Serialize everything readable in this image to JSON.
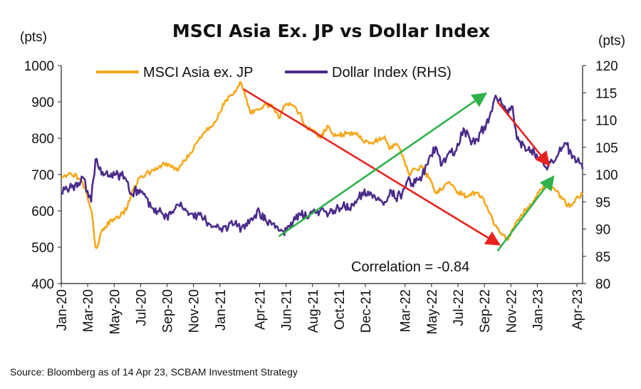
{
  "chart_data": {
    "type": "line",
    "title": "MSCI Asia Ex. JP vs Dollar Index",
    "left_unit": "(pts)",
    "right_unit": "(pts)",
    "source": "Source: Bloomberg as of 14 Apr 23, SCBAM Investment Strategy",
    "annotation": "Correlation = -0.84",
    "x_start": "2020-01",
    "x_end": "2023-04-14",
    "x_tick_labels": [
      "Jan-20",
      "Mar-20",
      "May-20",
      "Jul-20",
      "Sep-20",
      "Nov-20",
      "Jan-21",
      "Apr-21",
      "Jun-21",
      "Aug-21",
      "Oct-21",
      "Dec-21",
      "Mar-22",
      "May-22",
      "Jul-22",
      "Sep-22",
      "Nov-22",
      "Jan-23",
      "Apr-23"
    ],
    "y_left": {
      "min": 400,
      "max": 1000,
      "ticks": [
        400,
        500,
        600,
        700,
        800,
        900,
        1000
      ]
    },
    "y_right": {
      "min": 80,
      "max": 120,
      "ticks": [
        80,
        85,
        90,
        95,
        100,
        105,
        110,
        115,
        120
      ]
    },
    "grid": false,
    "legend_position": "top",
    "series": [
      {
        "name": "MSCI Asia ex. JP",
        "axis": "left",
        "color": "#F5A81C",
        "points": [
          [
            "2020-01-01",
            690
          ],
          [
            "2020-01-20",
            705
          ],
          [
            "2020-02-10",
            690
          ],
          [
            "2020-02-25",
            665
          ],
          [
            "2020-03-10",
            600
          ],
          [
            "2020-03-19",
            500
          ],
          [
            "2020-03-23",
            500
          ],
          [
            "2020-04-05",
            550
          ],
          [
            "2020-04-25",
            575
          ],
          [
            "2020-05-15",
            585
          ],
          [
            "2020-06-01",
            610
          ],
          [
            "2020-06-15",
            660
          ],
          [
            "2020-07-01",
            695
          ],
          [
            "2020-07-20",
            705
          ],
          [
            "2020-08-10",
            715
          ],
          [
            "2020-08-25",
            730
          ],
          [
            "2020-09-10",
            720
          ],
          [
            "2020-09-25",
            710
          ],
          [
            "2020-10-10",
            740
          ],
          [
            "2020-10-25",
            760
          ],
          [
            "2020-11-10",
            790
          ],
          [
            "2020-11-25",
            815
          ],
          [
            "2020-12-10",
            830
          ],
          [
            "2020-12-31",
            870
          ],
          [
            "2021-01-15",
            905
          ],
          [
            "2021-02-01",
            920
          ],
          [
            "2021-02-17",
            955
          ],
          [
            "2021-03-01",
            910
          ],
          [
            "2021-03-10",
            870
          ],
          [
            "2021-03-25",
            880
          ],
          [
            "2021-04-15",
            895
          ],
          [
            "2021-05-01",
            885
          ],
          [
            "2021-05-15",
            855
          ],
          [
            "2021-06-01",
            895
          ],
          [
            "2021-06-15",
            890
          ],
          [
            "2021-07-01",
            870
          ],
          [
            "2021-07-20",
            825
          ],
          [
            "2021-08-05",
            820
          ],
          [
            "2021-08-20",
            800
          ],
          [
            "2021-09-05",
            835
          ],
          [
            "2021-09-20",
            805
          ],
          [
            "2021-10-10",
            810
          ],
          [
            "2021-10-25",
            815
          ],
          [
            "2021-11-10",
            810
          ],
          [
            "2021-11-25",
            795
          ],
          [
            "2021-12-10",
            785
          ],
          [
            "2021-12-31",
            795
          ],
          [
            "2022-01-15",
            805
          ],
          [
            "2022-01-28",
            770
          ],
          [
            "2022-02-10",
            785
          ],
          [
            "2022-02-20",
            770
          ],
          [
            "2022-03-10",
            700
          ],
          [
            "2022-03-25",
            715
          ],
          [
            "2022-04-10",
            720
          ],
          [
            "2022-04-25",
            690
          ],
          [
            "2022-05-10",
            650
          ],
          [
            "2022-05-25",
            660
          ],
          [
            "2022-06-10",
            680
          ],
          [
            "2022-06-25",
            660
          ],
          [
            "2022-07-10",
            645
          ],
          [
            "2022-07-25",
            640
          ],
          [
            "2022-08-10",
            650
          ],
          [
            "2022-08-25",
            640
          ],
          [
            "2022-09-10",
            600
          ],
          [
            "2022-09-25",
            560
          ],
          [
            "2022-10-10",
            535
          ],
          [
            "2022-10-25",
            520
          ],
          [
            "2022-11-10",
            560
          ],
          [
            "2022-11-25",
            590
          ],
          [
            "2022-12-10",
            610
          ],
          [
            "2022-12-25",
            630
          ],
          [
            "2023-01-10",
            660
          ],
          [
            "2023-01-27",
            675
          ],
          [
            "2023-02-10",
            660
          ],
          [
            "2023-02-25",
            640
          ],
          [
            "2023-03-10",
            615
          ],
          [
            "2023-03-20",
            615
          ],
          [
            "2023-04-01",
            640
          ],
          [
            "2023-04-14",
            645
          ]
        ]
      },
      {
        "name": "Dollar Index (RHS)",
        "axis": "right",
        "color": "#4B2C8A",
        "points": [
          [
            "2020-01-01",
            96.5
          ],
          [
            "2020-01-20",
            97.5
          ],
          [
            "2020-02-10",
            98.5
          ],
          [
            "2020-02-20",
            99.5
          ],
          [
            "2020-03-09",
            95.0
          ],
          [
            "2020-03-19",
            102.8
          ],
          [
            "2020-03-25",
            101.5
          ],
          [
            "2020-04-10",
            100.0
          ],
          [
            "2020-04-25",
            100.2
          ],
          [
            "2020-05-10",
            100.0
          ],
          [
            "2020-05-25",
            99.5
          ],
          [
            "2020-06-10",
            96.5
          ],
          [
            "2020-06-25",
            97.2
          ],
          [
            "2020-07-10",
            96.5
          ],
          [
            "2020-07-25",
            94.0
          ],
          [
            "2020-08-10",
            93.3
          ],
          [
            "2020-08-31",
            92.5
          ],
          [
            "2020-09-15",
            93.0
          ],
          [
            "2020-09-25",
            94.5
          ],
          [
            "2020-10-10",
            93.5
          ],
          [
            "2020-10-25",
            92.8
          ],
          [
            "2020-11-10",
            92.6
          ],
          [
            "2020-11-25",
            91.8
          ],
          [
            "2020-12-10",
            90.8
          ],
          [
            "2020-12-31",
            89.9
          ],
          [
            "2021-01-06",
            89.5
          ],
          [
            "2021-01-20",
            90.3
          ],
          [
            "2021-02-05",
            91.0
          ],
          [
            "2021-02-20",
            90.2
          ],
          [
            "2021-03-10",
            91.8
          ],
          [
            "2021-03-31",
            93.2
          ],
          [
            "2021-04-15",
            91.6
          ],
          [
            "2021-05-01",
            91.0
          ],
          [
            "2021-05-20",
            89.9
          ],
          [
            "2021-05-25",
            89.6
          ],
          [
            "2021-06-10",
            90.3
          ],
          [
            "2021-06-20",
            92.2
          ],
          [
            "2021-07-05",
            92.5
          ],
          [
            "2021-07-25",
            92.7
          ],
          [
            "2021-08-10",
            93.0
          ],
          [
            "2021-08-20",
            93.5
          ],
          [
            "2021-09-05",
            92.3
          ],
          [
            "2021-09-25",
            93.6
          ],
          [
            "2021-10-10",
            94.2
          ],
          [
            "2021-10-25",
            93.8
          ],
          [
            "2021-11-10",
            94.8
          ],
          [
            "2021-11-24",
            96.7
          ],
          [
            "2021-12-10",
            96.2
          ],
          [
            "2021-12-31",
            95.8
          ],
          [
            "2022-01-15",
            95.0
          ],
          [
            "2022-01-28",
            97.2
          ],
          [
            "2022-02-10",
            95.6
          ],
          [
            "2022-02-25",
            96.6
          ],
          [
            "2022-03-07",
            99.0
          ],
          [
            "2022-03-25",
            98.5
          ],
          [
            "2022-04-10",
            99.8
          ],
          [
            "2022-04-28",
            103.5
          ],
          [
            "2022-05-13",
            104.8
          ],
          [
            "2022-05-25",
            101.8
          ],
          [
            "2022-06-10",
            103.9
          ],
          [
            "2022-06-25",
            104.2
          ],
          [
            "2022-07-14",
            108.5
          ],
          [
            "2022-08-01",
            105.5
          ],
          [
            "2022-08-15",
            106.5
          ],
          [
            "2022-08-31",
            108.8
          ],
          [
            "2022-09-10",
            109.5
          ],
          [
            "2022-09-27",
            114.5
          ],
          [
            "2022-10-10",
            113.0
          ],
          [
            "2022-10-25",
            111.0
          ],
          [
            "2022-11-05",
            112.5
          ],
          [
            "2022-11-15",
            106.5
          ],
          [
            "2022-11-30",
            105.5
          ],
          [
            "2022-12-10",
            104.5
          ],
          [
            "2022-12-25",
            104.0
          ],
          [
            "2023-01-10",
            103.0
          ],
          [
            "2023-01-26",
            101.5
          ],
          [
            "2023-02-05",
            102.5
          ],
          [
            "2023-02-20",
            104.0
          ],
          [
            "2023-03-08",
            105.5
          ],
          [
            "2023-03-20",
            103.0
          ],
          [
            "2023-04-01",
            102.3
          ],
          [
            "2023-04-10",
            102.0
          ],
          [
            "2023-04-14",
            101.0
          ]
        ]
      }
    ],
    "arrows": [
      {
        "color": "#E8231E",
        "from": [
          "2021-02-25",
          935
        ],
        "to": [
          "2022-10-01",
          510
        ],
        "axis": "left"
      },
      {
        "color": "#2DB34A",
        "from": [
          "2021-05-15",
          530
        ],
        "to": [
          "2022-08-31",
          920
        ],
        "axis": "left"
      },
      {
        "color": "#E8231E",
        "from": [
          "2022-10-01",
          900
        ],
        "to": [
          "2023-01-25",
          730
        ],
        "axis": "left"
      },
      {
        "color": "#2DB34A",
        "from": [
          "2022-10-01",
          490
        ],
        "to": [
          "2023-02-05",
          690
        ],
        "axis": "left"
      }
    ]
  }
}
